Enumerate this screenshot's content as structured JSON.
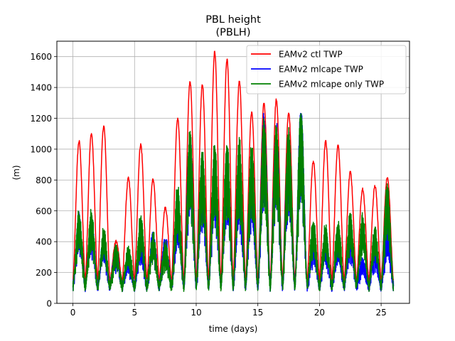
{
  "chart_data": {
    "type": "line",
    "title": "PBL height",
    "subtitle": "(PBLH)",
    "xlabel": "time (days)",
    "ylabel": "(m)",
    "xlim": [
      -1.3,
      27.3
    ],
    "ylim": [
      0,
      1700
    ],
    "xticks": [
      0,
      5,
      10,
      15,
      20,
      25
    ],
    "xtick_labels": [
      "0",
      "5",
      "10",
      "15",
      "20",
      "25"
    ],
    "yticks": [
      0,
      200,
      400,
      600,
      800,
      1000,
      1200,
      1400,
      1600
    ],
    "ytick_labels": [
      "0",
      "200",
      "400",
      "600",
      "800",
      "1000",
      "1200",
      "1400",
      "1600"
    ],
    "grid": true,
    "legend_position": "top-right",
    "series": [
      {
        "name": "EAMv2 ctl TWP",
        "color": "#ff0000",
        "daily_peaks": [
          1050,
          1100,
          1150,
          400,
          810,
          1030,
          800,
          620,
          1200,
          1440,
          1420,
          1630,
          1580,
          1440,
          1240,
          1300,
          1320,
          1240,
          1050,
          920,
          1050,
          1020,
          850,
          740,
          760,
          820
        ]
      },
      {
        "name": "EAMv2 mlcape TWP",
        "color": "#0000ff",
        "daily_peaks": [
          560,
          560,
          420,
          360,
          300,
          460,
          450,
          420,
          640,
          1100,
          900,
          950,
          960,
          900,
          880,
          1220,
          1150,
          1090,
          1260,
          430,
          420,
          400,
          480,
          280,
          350,
          480
        ]
      },
      {
        "name": "EAMv2 mlcape only TWP",
        "color": "#008000",
        "daily_peaks": [
          590,
          590,
          470,
          370,
          360,
          560,
          440,
          380,
          760,
          1110,
          1000,
          1040,
          1040,
          1060,
          1030,
          1200,
          1150,
          1130,
          1260,
          530,
          500,
          520,
          580,
          560,
          480,
          760
        ]
      }
    ]
  }
}
